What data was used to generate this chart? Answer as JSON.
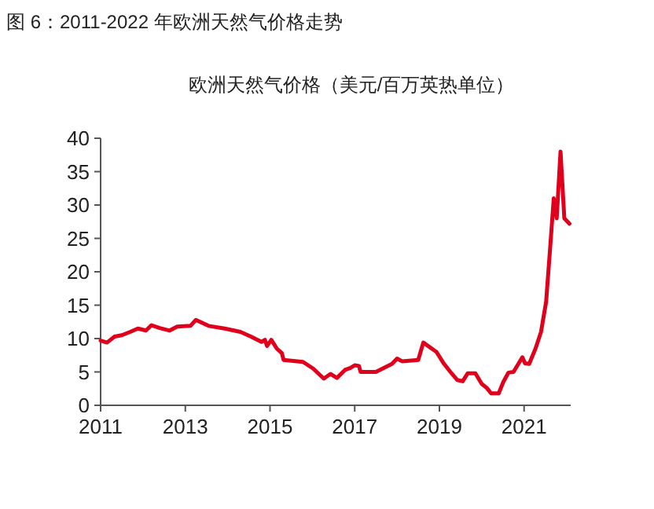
{
  "chart_data": {
    "type": "line",
    "title": "图 6：2011-2022 年欧洲天然气价格走势",
    "subtitle": "欧洲天然气价格（美元/百万英热单位）",
    "series": [
      {
        "color": "#e0001b",
        "x": [
          2011.0,
          2011.15,
          2011.33,
          2011.5,
          2011.7,
          2011.88,
          2012.07,
          2012.2,
          2012.38,
          2012.63,
          2012.81,
          2013.12,
          2013.25,
          2013.55,
          2013.93,
          2014.3,
          2014.55,
          2014.8,
          2014.88,
          2014.93,
          2015.03,
          2015.16,
          2015.28,
          2015.32,
          2015.78,
          2016.02,
          2016.27,
          2016.43,
          2016.58,
          2016.77,
          2016.9,
          2017.0,
          2017.1,
          2017.14,
          2017.5,
          2017.88,
          2018.0,
          2018.12,
          2018.5,
          2018.62,
          2018.93,
          2019.11,
          2019.26,
          2019.42,
          2019.55,
          2019.67,
          2019.85,
          2020.0,
          2020.12,
          2020.22,
          2020.4,
          2020.51,
          2020.63,
          2020.75,
          2020.96,
          2021.02,
          2021.12,
          2021.27,
          2021.4,
          2021.52,
          2021.62,
          2021.7,
          2021.77,
          2021.86,
          2021.95,
          2022.07
        ],
        "values": [
          9.7,
          9.4,
          10.3,
          10.5,
          11.0,
          11.5,
          11.2,
          12.0,
          11.6,
          11.2,
          11.8,
          11.9,
          12.8,
          11.9,
          11.5,
          11.0,
          10.3,
          9.5,
          9.8,
          8.9,
          9.8,
          8.5,
          7.8,
          6.8,
          6.5,
          5.5,
          4.0,
          4.7,
          4.1,
          5.3,
          5.6,
          6.0,
          5.9,
          5.0,
          5.0,
          6.2,
          7.0,
          6.6,
          6.8,
          9.4,
          8.0,
          6.2,
          5.0,
          3.8,
          3.6,
          4.8,
          4.8,
          3.2,
          2.6,
          1.8,
          1.8,
          3.5,
          4.9,
          5.0,
          7.2,
          6.3,
          6.2,
          8.5,
          11.0,
          15.5,
          24.0,
          31.0,
          28.0,
          38.0,
          28.0,
          27.2
        ]
      }
    ],
    "xlim": [
      2011,
      2022.1
    ],
    "xticks": [
      2011,
      2013,
      2015,
      2017,
      2019,
      2021
    ],
    "ylim": [
      0,
      40
    ],
    "yticks": [
      0,
      5,
      10,
      15,
      20,
      25,
      30,
      35,
      40
    ],
    "grid": false,
    "marker": "none",
    "line_style": "solid"
  }
}
